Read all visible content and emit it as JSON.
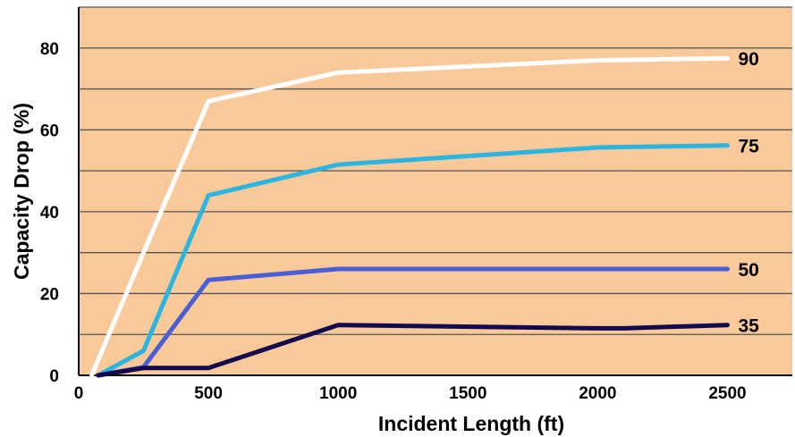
{
  "chart_data": {
    "type": "line",
    "title": "",
    "xlabel": "Incident Length (ft)",
    "ylabel": "Capacity Drop (%)",
    "xlim": [
      0,
      2750
    ],
    "ylim": [
      0,
      90
    ],
    "x_ticks": [
      0,
      500,
      1000,
      1500,
      2000,
      2500
    ],
    "y_ticks": [
      0,
      20,
      40,
      60,
      80
    ],
    "grid": "horizontal every 10",
    "background_color": "#FAC99A",
    "series": [
      {
        "name": "90",
        "color": "#FFFFFF",
        "points": [
          [
            50,
            0
          ],
          [
            250,
            30
          ],
          [
            500,
            67
          ],
          [
            1000,
            74
          ],
          [
            2000,
            77
          ],
          [
            2500,
            77.5
          ]
        ]
      },
      {
        "name": "75",
        "color": "#2BB5E0",
        "points": [
          [
            75,
            0
          ],
          [
            250,
            6
          ],
          [
            500,
            44
          ],
          [
            1000,
            51.5
          ],
          [
            2000,
            55.7
          ],
          [
            2500,
            56.2
          ]
        ]
      },
      {
        "name": "50",
        "color": "#4A5FD6",
        "points": [
          [
            75,
            0
          ],
          [
            250,
            2
          ],
          [
            500,
            23.3
          ],
          [
            1000,
            26
          ],
          [
            2500,
            26
          ]
        ]
      },
      {
        "name": "35",
        "color": "#120A4D",
        "points": [
          [
            75,
            0
          ],
          [
            250,
            1.8
          ],
          [
            500,
            1.8
          ],
          [
            1000,
            12.3
          ],
          [
            2000,
            11.5
          ],
          [
            2100,
            11.5
          ],
          [
            2500,
            12.3
          ]
        ]
      }
    ]
  }
}
